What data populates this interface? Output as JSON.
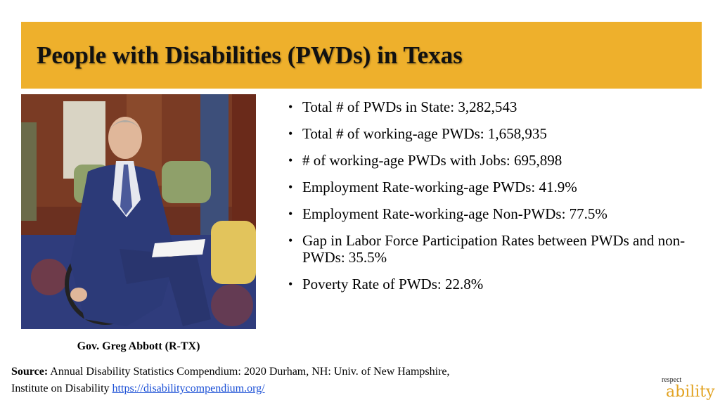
{
  "title": "People with Disabilities (PWDs) in Texas",
  "photo": {
    "caption": "Gov. Greg Abbott (R-TX)"
  },
  "bullets": [
    "Total # of PWDs in State: 3,282,543",
    "Total # of working-age PWDs: 1,658,935",
    "# of working-age PWDs with Jobs: 695,898",
    "Employment Rate-working-age PWDs: 41.9%",
    "Employment Rate-working-age Non-PWDs: 77.5%",
    "Gap in Labor Force Participation Rates between PWDs and non-PWDs: 35.5%",
    "Poverty Rate of PWDs: 22.8%"
  ],
  "source": {
    "label": "Source:",
    "text": "Annual Disability Statistics Compendium: 2020 Durham, NH: Univ. of New Hampshire, Institute on Disability",
    "link": "https://disabilitycompendium.org/"
  },
  "logo": {
    "top": "respect",
    "main": "ability"
  },
  "colors": {
    "banner": "#eeb02c",
    "link": "#1a4fd6",
    "logo_accent": "#e2a322"
  }
}
